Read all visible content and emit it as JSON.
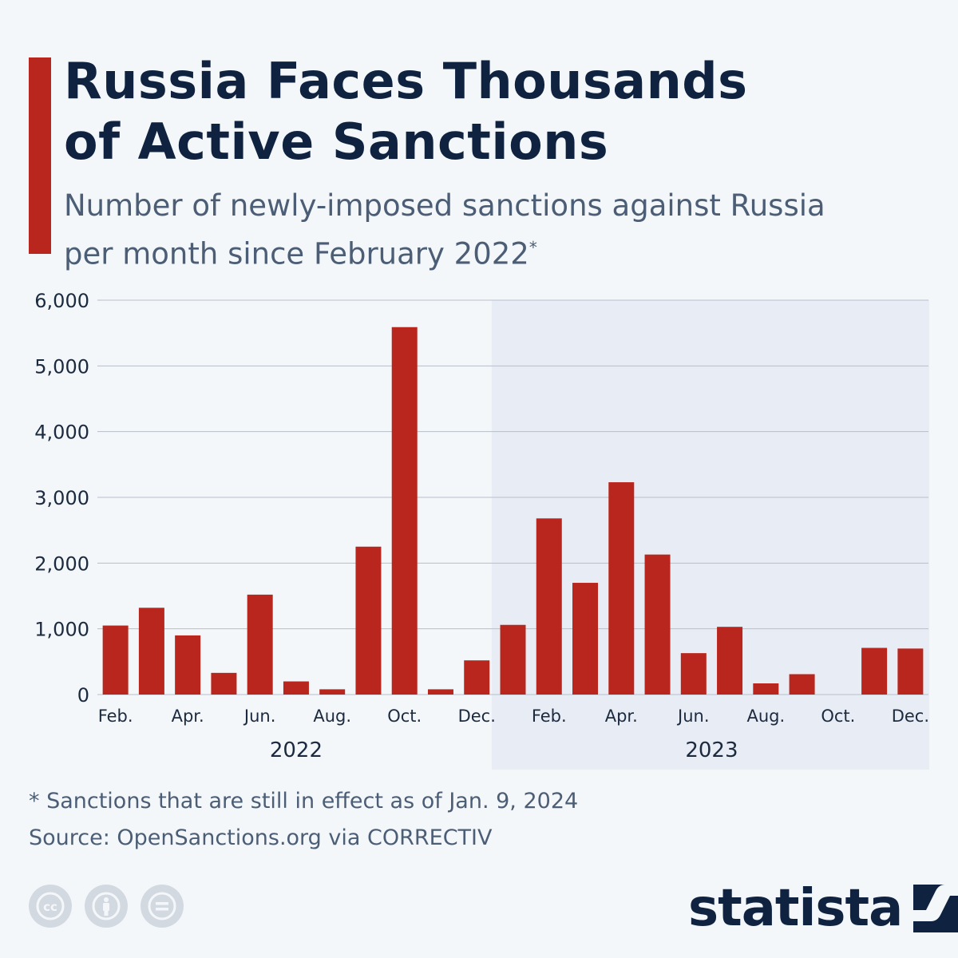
{
  "header": {
    "title_line1": "Russia Faces Thousands",
    "title_line2": "of Active Sanctions",
    "subtitle_line1": "Number of newly-imposed sanctions against Russia",
    "subtitle_line2": "per month since February 2022",
    "subtitle_mark": "*"
  },
  "colors": {
    "bar": "#b9261d",
    "accent": "#b9261d",
    "title": "#0f2341",
    "text": "#4c5e76",
    "highlight_band": "#e8edf5",
    "grid": "#b7bec9"
  },
  "chart_data": {
    "type": "bar",
    "x": [
      "2022-02",
      "2022-03",
      "2022-04",
      "2022-05",
      "2022-06",
      "2022-07",
      "2022-08",
      "2022-09",
      "2022-10",
      "2022-11",
      "2022-12",
      "2023-01",
      "2023-02",
      "2023-03",
      "2023-04",
      "2023-05",
      "2023-06",
      "2023-07",
      "2023-08",
      "2023-09",
      "2023-10",
      "2023-11",
      "2023-12"
    ],
    "values": [
      1050,
      1320,
      900,
      330,
      1520,
      200,
      80,
      2250,
      5590,
      80,
      520,
      1060,
      2680,
      1700,
      3230,
      2130,
      630,
      1030,
      170,
      310,
      0,
      710,
      700
    ],
    "tick_labels": [
      {
        "month": "2022-02",
        "label": "Feb."
      },
      {
        "month": "2022-04",
        "label": "Apr."
      },
      {
        "month": "2022-06",
        "label": "Jun."
      },
      {
        "month": "2022-08",
        "label": "Aug."
      },
      {
        "month": "2022-10",
        "label": "Oct."
      },
      {
        "month": "2022-12",
        "label": "Dec."
      },
      {
        "month": "2023-02",
        "label": "Feb."
      },
      {
        "month": "2023-04",
        "label": "Apr."
      },
      {
        "month": "2023-06",
        "label": "Jun."
      },
      {
        "month": "2023-08",
        "label": "Aug."
      },
      {
        "month": "2023-10",
        "label": "Oct."
      },
      {
        "month": "2023-12",
        "label": "Dec."
      }
    ],
    "year_labels": [
      {
        "label": "2022",
        "from": "2022-02",
        "to": "2022-12"
      },
      {
        "label": "2023",
        "from": "2023-01",
        "to": "2023-12",
        "shaded": true
      }
    ],
    "yticks": [
      0,
      1000,
      2000,
      3000,
      4000,
      5000,
      6000
    ],
    "ytick_labels": [
      "0",
      "1,000",
      "2,000",
      "3,000",
      "4,000",
      "5,000",
      "6,000"
    ],
    "ylim": [
      0,
      6000
    ],
    "grid": true,
    "legend": "none"
  },
  "footer": {
    "footnote": "* Sanctions that are still in effect as of Jan. 9, 2024",
    "source": "Source: OpenSanctions.org via CORRECTIV",
    "logo": "statista",
    "license_icons": [
      "cc-icon",
      "attribution-icon",
      "no-derivatives-icon"
    ],
    "logo_icon": "statista-logo-icon"
  }
}
